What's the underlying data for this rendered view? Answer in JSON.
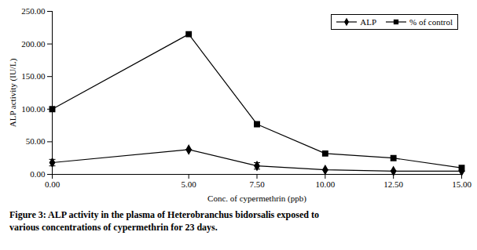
{
  "chart_data": {
    "type": "line",
    "x": [
      0.0,
      5.0,
      7.5,
      10.0,
      12.5,
      15.0
    ],
    "xlabel": "Conc. of cypermethrin (ppb)",
    "ylabel": "ALP activity (IU/L)",
    "series": [
      {
        "name": "ALP",
        "color": "#000000",
        "marker": "diamond",
        "values": [
          18,
          38,
          13,
          7,
          5,
          5
        ],
        "errors": [
          5,
          0,
          5,
          0,
          0,
          0
        ]
      },
      {
        "name": "% of control",
        "color": "#000000",
        "marker": "square",
        "values": [
          100,
          215,
          77,
          32,
          25,
          10
        ]
      }
    ],
    "xlim": [
      0,
      15
    ],
    "xticks": [
      {
        "value": 0,
        "label": "0.00"
      },
      {
        "value": 5,
        "label": "5.00"
      },
      {
        "value": 7.5,
        "label": "7.50"
      },
      {
        "value": 10,
        "label": "10.00"
      },
      {
        "value": 12.5,
        "label": "12.50"
      },
      {
        "value": 15,
        "label": "15.00"
      }
    ],
    "ylim": [
      0,
      250
    ],
    "yticks": [
      {
        "value": 0,
        "label": "0.00"
      },
      {
        "value": 50,
        "label": "50.00"
      },
      {
        "value": 100,
        "label": "100.00"
      },
      {
        "value": 150,
        "label": "150.00"
      },
      {
        "value": 200,
        "label": "200.00"
      },
      {
        "value": 250,
        "label": "250.00"
      }
    ],
    "grid": false,
    "legend": "upper right",
    "caption": [
      "Figure 3: ALP activity in the plasma of Heterobranchus bidorsalis exposed to",
      "various concentrations of cypermethrin for 23 days."
    ]
  }
}
